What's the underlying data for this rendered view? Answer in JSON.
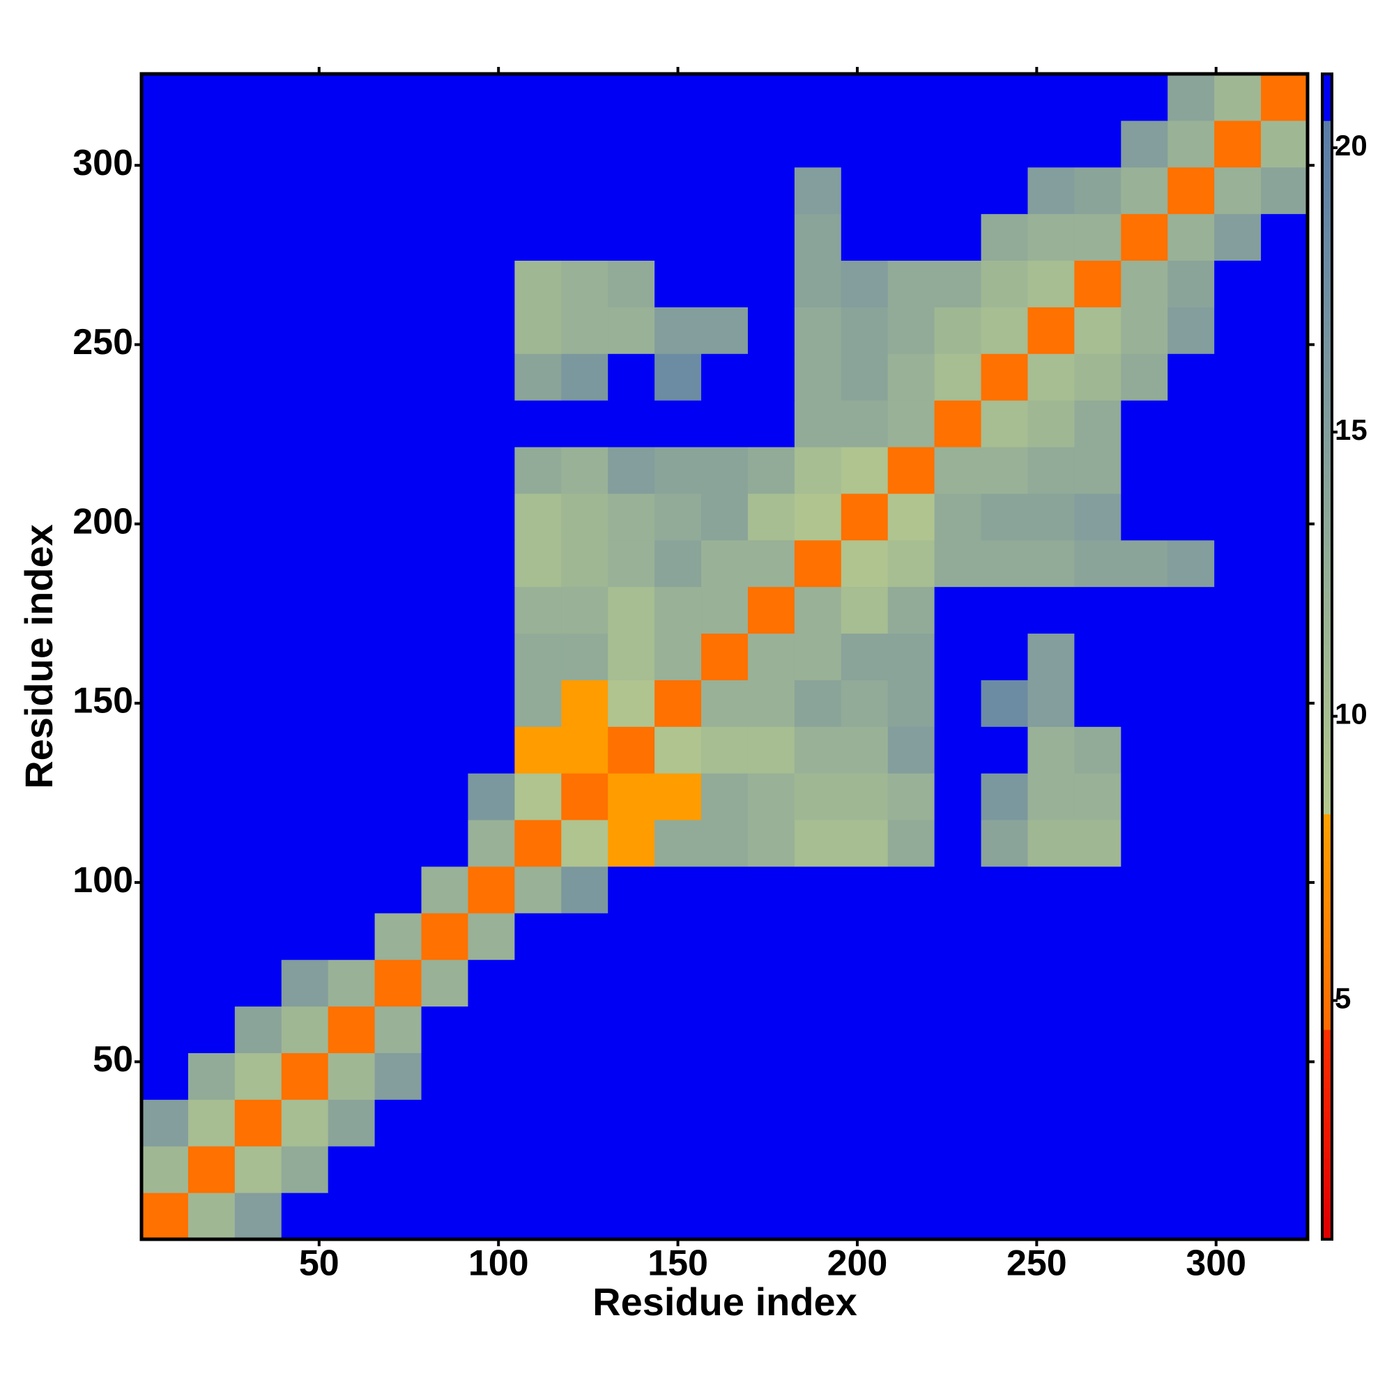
{
  "chart_data": {
    "type": "heatmap",
    "xlabel": "Residue index",
    "ylabel": "Residue index",
    "x": [
      7,
      20,
      33,
      46,
      59,
      72,
      85,
      98,
      111,
      124,
      137,
      150,
      163,
      176,
      189,
      202,
      215,
      228,
      241,
      254,
      267,
      280,
      293,
      306,
      319
    ],
    "y": [
      7,
      20,
      33,
      46,
      59,
      72,
      85,
      98,
      111,
      124,
      137,
      150,
      163,
      176,
      189,
      202,
      215,
      228,
      241,
      254,
      267,
      280,
      293,
      306,
      319
    ],
    "xlim": [
      0.5,
      325.5
    ],
    "ylim": [
      0.5,
      325.5
    ],
    "xticks": [
      50,
      100,
      150,
      200,
      250,
      300
    ],
    "yticks": [
      50,
      100,
      150,
      200,
      250,
      300
    ],
    "clim": [
      0.8,
      21.3
    ],
    "cticks": [
      5,
      10,
      15,
      20
    ],
    "z": [
      [
        5,
        11,
        15,
        21,
        21,
        21,
        21,
        21,
        21,
        21,
        21,
        21,
        21,
        21,
        21,
        21,
        21,
        21,
        21,
        21,
        21,
        21,
        21,
        21,
        21
      ],
      [
        11,
        5,
        10,
        13,
        21,
        21,
        21,
        21,
        21,
        21,
        21,
        21,
        21,
        21,
        21,
        21,
        21,
        21,
        21,
        21,
        21,
        21,
        21,
        21,
        21
      ],
      [
        15,
        10,
        5,
        10,
        14,
        21,
        21,
        21,
        21,
        21,
        21,
        21,
        21,
        21,
        21,
        21,
        21,
        21,
        21,
        21,
        21,
        21,
        21,
        21,
        21
      ],
      [
        21,
        13,
        10,
        5,
        11,
        15,
        21,
        21,
        21,
        21,
        21,
        21,
        21,
        21,
        21,
        21,
        21,
        21,
        21,
        21,
        21,
        21,
        21,
        21,
        21
      ],
      [
        21,
        21,
        14,
        11,
        5,
        12,
        21,
        21,
        21,
        21,
        21,
        21,
        21,
        21,
        21,
        21,
        21,
        21,
        21,
        21,
        21,
        21,
        21,
        21,
        21
      ],
      [
        21,
        21,
        21,
        15,
        12,
        5,
        12,
        21,
        21,
        21,
        21,
        21,
        21,
        21,
        21,
        21,
        21,
        21,
        21,
        21,
        21,
        21,
        21,
        21,
        21
      ],
      [
        21,
        21,
        21,
        21,
        21,
        12,
        5,
        12,
        21,
        21,
        21,
        21,
        21,
        21,
        21,
        21,
        21,
        21,
        21,
        21,
        21,
        21,
        21,
        21,
        21
      ],
      [
        21,
        21,
        21,
        21,
        21,
        21,
        12,
        5,
        12,
        16,
        21,
        21,
        21,
        21,
        21,
        21,
        21,
        21,
        21,
        21,
        21,
        21,
        21,
        21,
        21
      ],
      [
        21,
        21,
        21,
        21,
        21,
        21,
        21,
        12,
        5,
        9,
        8,
        13,
        13,
        12,
        10,
        10,
        13,
        21,
        14,
        11,
        11,
        21,
        21,
        21,
        21
      ],
      [
        21,
        21,
        21,
        21,
        21,
        21,
        21,
        16,
        9,
        5,
        8,
        8,
        13,
        12,
        11,
        11,
        12,
        21,
        16,
        12,
        12,
        21,
        21,
        21,
        21
      ],
      [
        21,
        21,
        21,
        21,
        21,
        21,
        21,
        21,
        8,
        8,
        5,
        9,
        10,
        10,
        12,
        12,
        15,
        21,
        21,
        12,
        13,
        21,
        21,
        21,
        21
      ],
      [
        21,
        21,
        21,
        21,
        21,
        21,
        21,
        21,
        13,
        8,
        9,
        5,
        12,
        12,
        14,
        13,
        14,
        21,
        18,
        15,
        21,
        21,
        21,
        21,
        21
      ],
      [
        21,
        21,
        21,
        21,
        21,
        21,
        21,
        21,
        13,
        13,
        10,
        12,
        5,
        12,
        12,
        14,
        14,
        21,
        21,
        15,
        21,
        21,
        21,
        21,
        21
      ],
      [
        21,
        21,
        21,
        21,
        21,
        21,
        21,
        21,
        12,
        12,
        10,
        12,
        12,
        5,
        12,
        10,
        13,
        21,
        21,
        21,
        21,
        21,
        21,
        21,
        21
      ],
      [
        21,
        21,
        21,
        21,
        21,
        21,
        21,
        21,
        10,
        11,
        12,
        14,
        12,
        12,
        5,
        9,
        10,
        13,
        13,
        13,
        14,
        14,
        15,
        21,
        21
      ],
      [
        21,
        21,
        21,
        21,
        21,
        21,
        21,
        21,
        10,
        11,
        12,
        13,
        14,
        10,
        9,
        5,
        9,
        13,
        14,
        14,
        15,
        21,
        21,
        21,
        21
      ],
      [
        21,
        21,
        21,
        21,
        21,
        21,
        21,
        21,
        13,
        12,
        15,
        14,
        14,
        13,
        10,
        9,
        5,
        12,
        12,
        13,
        13,
        21,
        21,
        21,
        21
      ],
      [
        21,
        21,
        21,
        21,
        21,
        21,
        21,
        21,
        21,
        21,
        21,
        21,
        21,
        21,
        13,
        13,
        12,
        5,
        10,
        11,
        13,
        21,
        21,
        21,
        21
      ],
      [
        21,
        21,
        21,
        21,
        21,
        21,
        21,
        21,
        14,
        16,
        21,
        18,
        21,
        21,
        13,
        14,
        12,
        10,
        5,
        10,
        11,
        13,
        21,
        21,
        21
      ],
      [
        21,
        21,
        21,
        21,
        21,
        21,
        21,
        21,
        11,
        12,
        12,
        15,
        15,
        21,
        13,
        14,
        13,
        11,
        10,
        5,
        10,
        12,
        15,
        21,
        21
      ],
      [
        21,
        21,
        21,
        21,
        21,
        21,
        21,
        21,
        11,
        12,
        13,
        21,
        21,
        21,
        14,
        15,
        13,
        13,
        11,
        10,
        5,
        12,
        14,
        21,
        21
      ],
      [
        21,
        21,
        21,
        21,
        21,
        21,
        21,
        21,
        21,
        21,
        21,
        21,
        21,
        21,
        14,
        21,
        21,
        21,
        13,
        12,
        12,
        5,
        12,
        15,
        21
      ],
      [
        21,
        21,
        21,
        21,
        21,
        21,
        21,
        21,
        21,
        21,
        21,
        21,
        21,
        21,
        15,
        21,
        21,
        21,
        21,
        15,
        14,
        12,
        5,
        12,
        14
      ],
      [
        21,
        21,
        21,
        21,
        21,
        21,
        21,
        21,
        21,
        21,
        21,
        21,
        21,
        21,
        21,
        21,
        21,
        21,
        21,
        21,
        21,
        15,
        12,
        5,
        11
      ],
      [
        21,
        21,
        21,
        21,
        21,
        21,
        21,
        21,
        21,
        21,
        21,
        21,
        21,
        21,
        21,
        21,
        21,
        21,
        21,
        21,
        21,
        21,
        14,
        11,
        5
      ]
    ]
  }
}
